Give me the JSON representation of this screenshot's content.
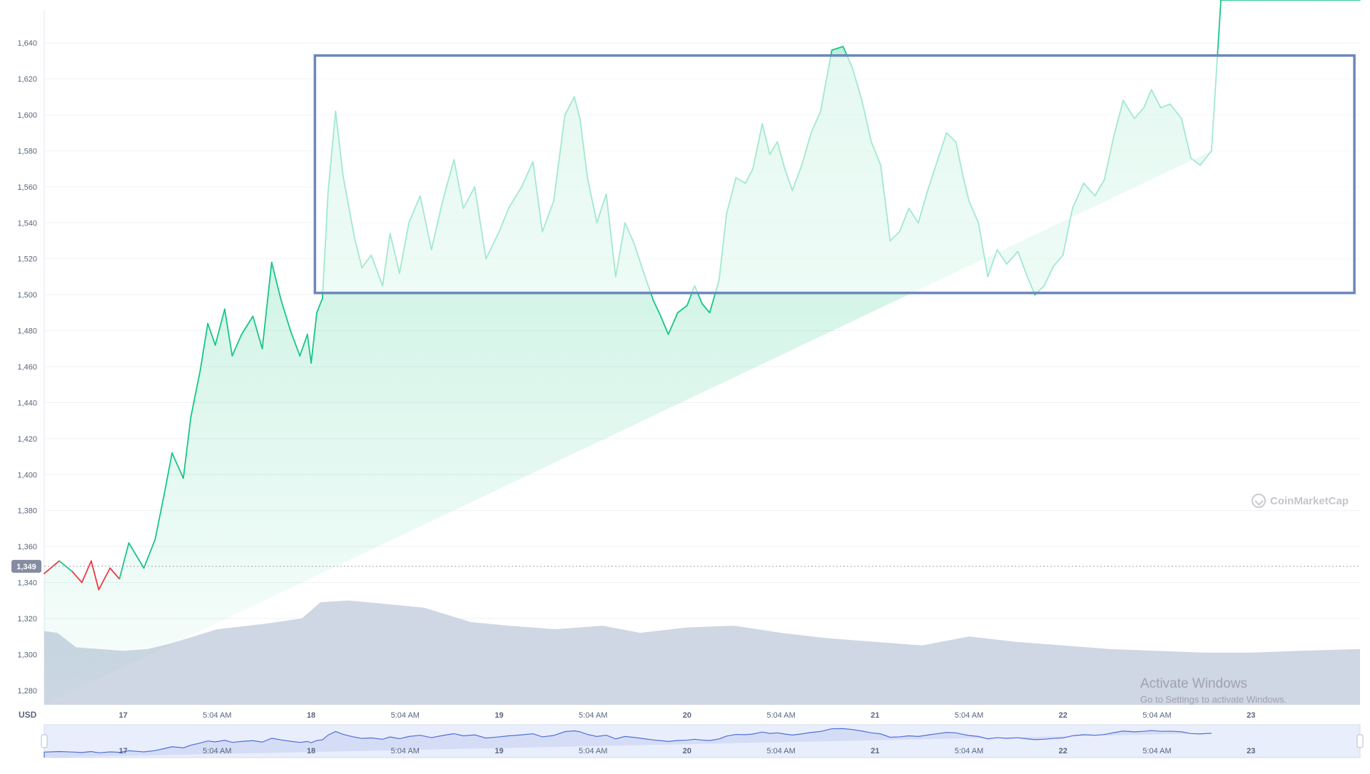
{
  "chart_data": {
    "type": "area",
    "title": "",
    "currency_label": "USD",
    "current_price_tag": "1,349",
    "y_ticks": [
      1280,
      1300,
      1320,
      1340,
      1360,
      1380,
      1400,
      1420,
      1440,
      1460,
      1480,
      1500,
      1520,
      1540,
      1560,
      1580,
      1600,
      1620,
      1640
    ],
    "y_tick_labels": [
      "1,280",
      "1,300",
      "1,320",
      "1,340",
      "1,360",
      "1,380",
      "1,400",
      "1,420",
      "1,440",
      "1,460",
      "1,480",
      "1,500",
      "1,520",
      "1,540",
      "1,560",
      "1,580",
      "1,600",
      "1,620",
      "1,640"
    ],
    "ylim": [
      1272,
      1648
    ],
    "x_ticks": [
      {
        "t": 1.0,
        "label": "17"
      },
      {
        "t": 1.5,
        "label": "5:04 AM"
      },
      {
        "t": 2.0,
        "label": "18"
      },
      {
        "t": 2.5,
        "label": "5:04 AM"
      },
      {
        "t": 3.0,
        "label": "19"
      },
      {
        "t": 3.5,
        "label": "5:04 AM"
      },
      {
        "t": 4.0,
        "label": "20"
      },
      {
        "t": 4.5,
        "label": "5:04 AM"
      },
      {
        "t": 5.0,
        "label": "21"
      },
      {
        "t": 5.5,
        "label": "5:04 AM"
      },
      {
        "t": 6.0,
        "label": "22"
      },
      {
        "t": 6.5,
        "label": "5:04 AM"
      },
      {
        "t": 7.0,
        "label": "23"
      }
    ],
    "x_time_range_days": [
      0.58,
      7.58
    ],
    "reference_price": 1349,
    "series": [
      {
        "x_days": [
          0.58,
          0.66,
          0.73,
          0.78,
          0.83,
          0.87,
          0.93,
          0.98,
          1.03,
          1.07,
          1.11,
          1.17,
          1.22,
          1.26,
          1.32,
          1.36,
          1.41,
          1.45,
          1.49,
          1.54,
          1.58,
          1.63,
          1.69,
          1.74,
          1.79,
          1.84,
          1.89,
          1.94,
          1.98,
          2.0,
          2.03,
          2.06,
          2.09,
          2.13,
          2.17,
          2.23,
          2.27,
          2.32,
          2.38,
          2.42,
          2.47,
          2.52,
          2.58,
          2.64,
          2.69,
          2.72,
          2.76,
          2.81,
          2.87,
          2.93,
          3.0,
          3.05,
          3.12,
          3.18,
          3.23,
          3.29,
          3.35,
          3.4,
          3.43,
          3.47,
          3.52,
          3.57,
          3.62,
          3.67,
          3.72,
          3.77,
          3.82,
          3.86,
          3.9,
          3.95,
          4.0,
          4.04,
          4.08,
          4.12,
          4.17,
          4.21,
          4.26,
          4.31,
          4.35,
          4.4,
          4.44,
          4.48,
          4.52,
          4.56,
          4.61,
          4.66,
          4.71,
          4.77,
          4.83,
          4.88,
          4.93,
          4.98,
          5.03,
          5.08,
          5.13,
          5.18,
          5.23,
          5.28,
          5.33,
          5.38,
          5.43,
          5.47,
          5.5,
          5.55,
          5.6,
          5.65,
          5.7,
          5.76,
          5.81,
          5.85,
          5.9,
          5.95,
          6.0,
          6.05,
          6.11,
          6.17,
          6.22,
          6.27,
          6.32,
          6.38,
          6.43,
          6.47,
          6.52,
          6.57,
          6.63,
          6.68,
          6.73,
          6.79,
          6.84,
          6.88,
          6.94,
          6.99,
          7.05,
          7.1,
          7.15,
          7.2,
          7.24,
          7.28,
          7.33,
          7.38,
          7.43,
          7.48,
          7.53,
          7.58
        ],
        "price": [
          1345,
          1352,
          1346,
          1340,
          1352,
          1336,
          1348,
          1342,
          1362,
          1355,
          1348,
          1364,
          1390,
          1412,
          1398,
          1432,
          1458,
          1484,
          1472,
          1492,
          1466,
          1478,
          1488,
          1470,
          1518,
          1497,
          1480,
          1466,
          1478,
          1462,
          1490,
          1498,
          1557,
          1602,
          1566,
          1532,
          1515,
          1522,
          1505,
          1534,
          1512,
          1540,
          1555,
          1525,
          1548,
          1560,
          1575,
          1548,
          1560,
          1520,
          1535,
          1548,
          1560,
          1574,
          1535,
          1552,
          1600,
          1610,
          1598,
          1565,
          1540,
          1556,
          1510,
          1540,
          1528,
          1512,
          1497,
          1488,
          1478,
          1490,
          1494,
          1505,
          1495,
          1490,
          1508,
          1545,
          1565,
          1562,
          1570,
          1595,
          1578,
          1585,
          1570,
          1558,
          1572,
          1590,
          1602,
          1636,
          1638,
          1626,
          1608,
          1585,
          1572,
          1530,
          1535,
          1548,
          1540,
          1558,
          1574,
          1590,
          1585,
          1565,
          1552,
          1540,
          1510,
          1525,
          1517,
          1524,
          1510,
          1500,
          1505,
          1516,
          1522,
          1548,
          1562,
          1555,
          1564,
          1588,
          1608,
          1598,
          1604,
          1614,
          1604,
          1606,
          1598,
          1576,
          1572,
          1580
        ],
        "up_color": "#16c784",
        "down_color": "#ea3943",
        "fill_color": "#16c784"
      }
    ],
    "volume_series": {
      "x_days": [
        0.58,
        0.65,
        0.75,
        1.0,
        1.13,
        1.25,
        1.5,
        1.75,
        1.95,
        2.05,
        2.2,
        2.4,
        2.6,
        2.85,
        3.05,
        3.3,
        3.55,
        3.75,
        4.0,
        4.25,
        4.5,
        4.75,
        5.0,
        5.25,
        5.5,
        5.75,
        6.0,
        6.25,
        6.5,
        6.75,
        7.0,
        7.25,
        7.58
      ],
      "values": [
        1313,
        1312,
        1304,
        1302,
        1303,
        1306,
        1314,
        1317,
        1320,
        1329,
        1330,
        1328,
        1326,
        1318,
        1316,
        1314,
        1316,
        1312,
        1315,
        1316,
        1312,
        1309,
        1307,
        1305,
        1310,
        1307,
        1305,
        1303,
        1302,
        1301,
        1301,
        1302,
        1303
      ],
      "fill_color": "#cfd6e4"
    },
    "highlight_box": {
      "x_days": [
        2.02,
        7.55
      ],
      "y_price": [
        1501,
        1633
      ],
      "stroke_color": "#6b88bb"
    },
    "navigator": {
      "tick_labels": [
        "17",
        "5:04 AM",
        "18",
        "5:04 AM",
        "19",
        "5:04 AM",
        "20",
        "5:04 AM",
        "21",
        "5:04 AM",
        "22",
        "5:04 AM",
        "23"
      ]
    },
    "grid": true,
    "legend": "none"
  },
  "branding": {
    "logo_text": "CoinMarketCap"
  },
  "os_overlay": {
    "title": "Activate Windows",
    "subtitle": "Go to Settings to activate Windows."
  }
}
